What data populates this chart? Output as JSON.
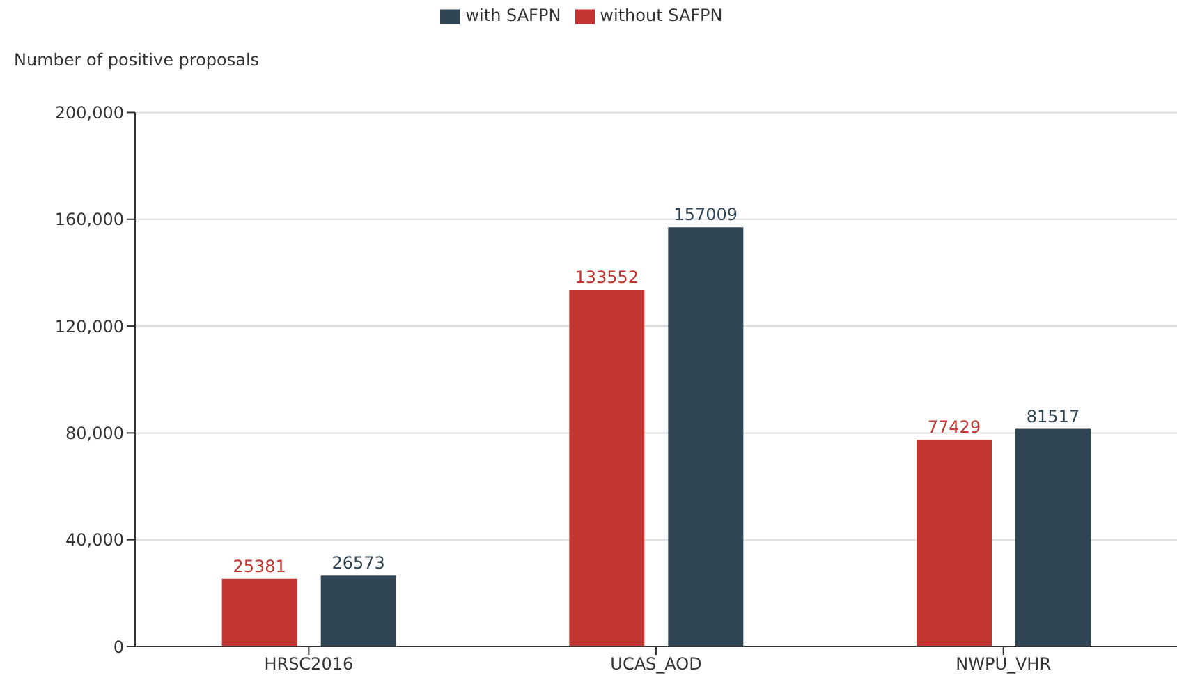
{
  "chart_data": {
    "type": "bar",
    "ylabel": "Number of positive proposals",
    "categories": [
      "HRSC2016",
      "UCAS_AOD",
      "NWPU_VHR"
    ],
    "series": [
      {
        "name": "without SAFPN",
        "color": "#c23531",
        "values": [
          25381,
          133552,
          77429
        ]
      },
      {
        "name": "with SAFPN",
        "color": "#2f4554",
        "values": [
          26573,
          157009,
          81517
        ]
      }
    ],
    "ylim": [
      0,
      200000
    ],
    "yticks": [
      {
        "value": 0,
        "label": "0"
      },
      {
        "value": 40000,
        "label": "40,000"
      },
      {
        "value": 80000,
        "label": "80,000"
      },
      {
        "value": 120000,
        "label": "120,000"
      },
      {
        "value": 160000,
        "label": "160,000"
      },
      {
        "value": 200000,
        "label": "200,000"
      }
    ],
    "grid": "y",
    "legend": "top",
    "data_labels": true
  }
}
